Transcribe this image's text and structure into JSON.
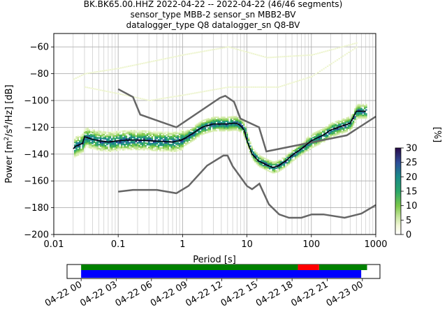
{
  "title_lines": [
    "BK.BK65.00.HHZ   2022-04-22 -- 2022-04-22  (46/46 segments)",
    "sensor_type MBB-2 sensor_sn MBB2-BV",
    "datalogger_type Q8 datalogger_sn Q8-BV"
  ],
  "chart_data": [
    {
      "type": "heatmap",
      "xscale": "log",
      "xlim": [
        0.01,
        1000
      ],
      "ylim": [
        -200,
        -50
      ],
      "xlabel": "Period [s]",
      "ylabel": "Power [m^2/s^4/Hz] [dB]",
      "x_ticks": [
        {
          "value": 0.01,
          "label": "0.01"
        },
        {
          "value": 0.1,
          "label": "0.1"
        },
        {
          "value": 1,
          "label": "1"
        },
        {
          "value": 10,
          "label": "10"
        },
        {
          "value": 100,
          "label": "100"
        },
        {
          "value": 1000,
          "label": "1000"
        }
      ],
      "y_ticks": [
        {
          "value": -60,
          "label": "−60"
        },
        {
          "value": -80,
          "label": "−80"
        },
        {
          "value": -100,
          "label": "−100"
        },
        {
          "value": -120,
          "label": "−120"
        },
        {
          "value": -140,
          "label": "−140"
        },
        {
          "value": -160,
          "label": "−160"
        },
        {
          "value": -180,
          "label": "−180"
        },
        {
          "value": -200,
          "label": "−200"
        }
      ],
      "grid": true,
      "colorbar": {
        "label": "[%]",
        "range": [
          0,
          30
        ],
        "ticks": [
          {
            "value": 0,
            "label": "0"
          },
          {
            "value": 5,
            "label": "5"
          },
          {
            "value": 10,
            "label": "10"
          },
          {
            "value": 15,
            "label": "15"
          },
          {
            "value": 20,
            "label": "20"
          },
          {
            "value": 25,
            "label": "25"
          },
          {
            "value": 30,
            "label": "30"
          }
        ]
      },
      "series": [
        {
          "role": "mode",
          "color": "#000000",
          "x": [
            0.02,
            0.022,
            0.025,
            0.028,
            0.03,
            0.04,
            0.05,
            0.07,
            0.1,
            0.15,
            0.2,
            0.3,
            0.5,
            0.7,
            0.9,
            1.1,
            1.5,
            2,
            2.5,
            3,
            4,
            5,
            6,
            7,
            8,
            9,
            10,
            12,
            15,
            20,
            25,
            30,
            40,
            50,
            70,
            100,
            150,
            200,
            300,
            400,
            500,
            700
          ],
          "y": [
            -136,
            -134,
            -133,
            -132,
            -127,
            -129,
            -130,
            -131,
            -130,
            -129.5,
            -129.5,
            -130,
            -130.5,
            -131,
            -130,
            -128,
            -124,
            -120,
            -118.5,
            -117.5,
            -117.5,
            -117.5,
            -117,
            -117,
            -119,
            -122,
            -130,
            -140,
            -145,
            -148,
            -150,
            -149,
            -145,
            -141,
            -136,
            -130,
            -126,
            -122,
            -119,
            -117,
            -108,
            -108
          ]
        },
        {
          "role": "noise-model-high",
          "color": "#666666",
          "x": [
            0.1,
            0.17,
            0.22,
            0.8,
            3.8,
            4.6,
            6.3,
            7.9,
            15.4,
            20,
            354.8,
            1000
          ],
          "y": [
            -91.5,
            -97.4,
            -110.5,
            -120,
            -98,
            -96.5,
            -101,
            -113.5,
            -120,
            -138,
            -126,
            -112
          ]
        },
        {
          "role": "noise-model-low",
          "color": "#666666",
          "x": [
            0.1,
            0.17,
            0.4,
            0.8,
            1.24,
            2.4,
            4.3,
            5,
            6,
            10,
            12,
            15.6,
            21.9,
            31.6,
            45,
            70,
            101,
            154,
            328,
            600,
            1000
          ],
          "y": [
            -168,
            -166.7,
            -166.7,
            -169.2,
            -163.7,
            -148.6,
            -141.1,
            -141.1,
            -149,
            -163.8,
            -166.2,
            -162.1,
            -177.5,
            -185,
            -187.5,
            -187.5,
            -185,
            -185,
            -187.5,
            -184.4,
            -178
          ]
        }
      ]
    },
    {
      "type": "bar",
      "orientation": "horizontal",
      "description_role": "data-availability",
      "x_ticks": [
        "04-22 00",
        "04-22 03",
        "04-22 06",
        "04-22 09",
        "04-22 12",
        "04-22 15",
        "04-22 18",
        "04-22 21",
        "04-23 00"
      ],
      "xlim_hours": [
        -1.2,
        25.5
      ],
      "series": [
        {
          "color": "#008000",
          "segments": [
            [
              0,
              18.5
            ],
            [
              20.3,
              24.4
            ]
          ]
        },
        {
          "color": "#ff0000",
          "segments": [
            [
              18.5,
              20.3
            ]
          ]
        },
        {
          "color": "#0000ff",
          "segments": [
            [
              0,
              23.9
            ]
          ]
        }
      ]
    }
  ]
}
